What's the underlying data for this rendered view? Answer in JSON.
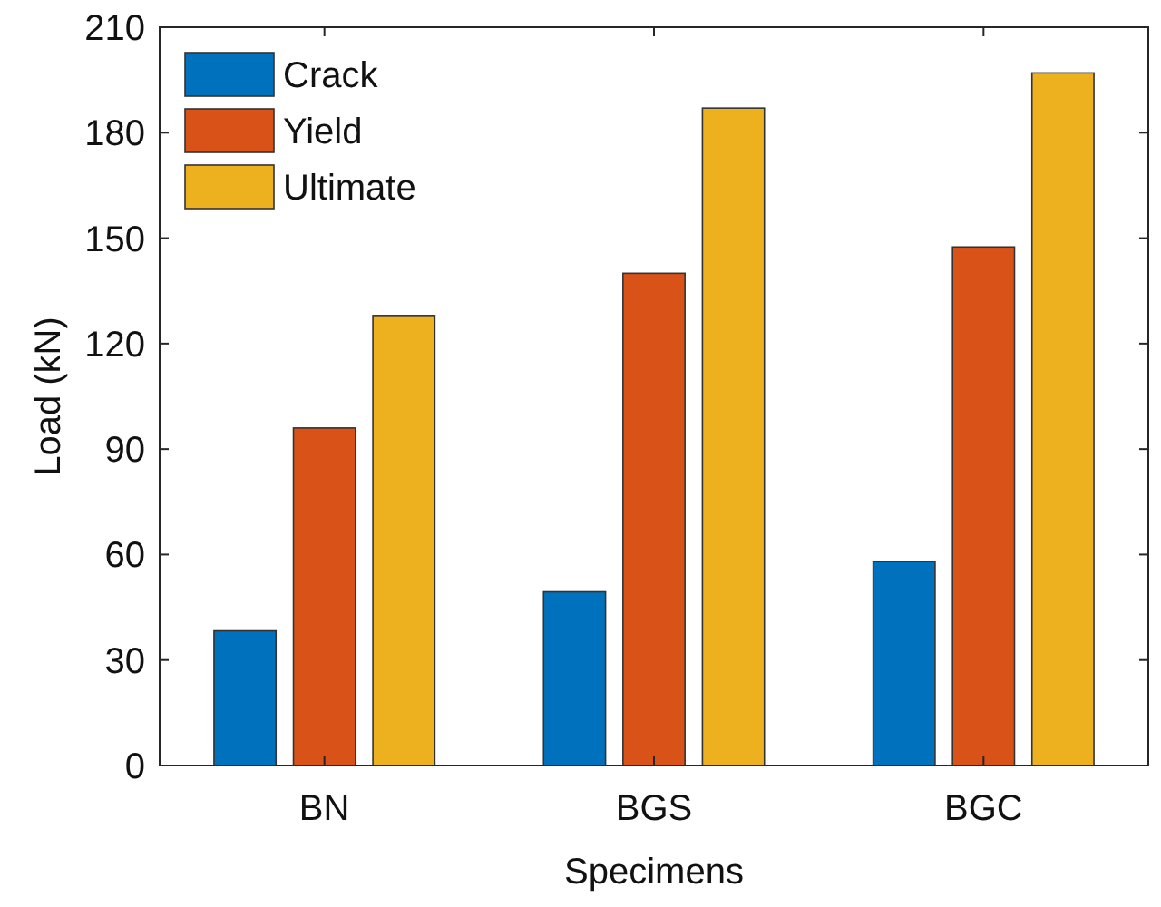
{
  "chart_data": {
    "type": "bar",
    "xlabel": "Specimens",
    "ylabel": "Load (kN)",
    "categories": [
      "BN",
      "BGS",
      "BGC"
    ],
    "series": [
      {
        "name": "Crack",
        "color": "#0072bd",
        "values": [
          38.3,
          49.4,
          58
        ]
      },
      {
        "name": "Yield",
        "color": "#d95319",
        "values": [
          96,
          140,
          147.5
        ]
      },
      {
        "name": "Ultimate",
        "color": "#edb120",
        "values": [
          128,
          187,
          197
        ]
      }
    ],
    "ylim": [
      0,
      210
    ],
    "yticks": [
      0,
      30,
      60,
      90,
      120,
      150,
      180,
      210
    ],
    "grid": false,
    "legend": "top left"
  }
}
